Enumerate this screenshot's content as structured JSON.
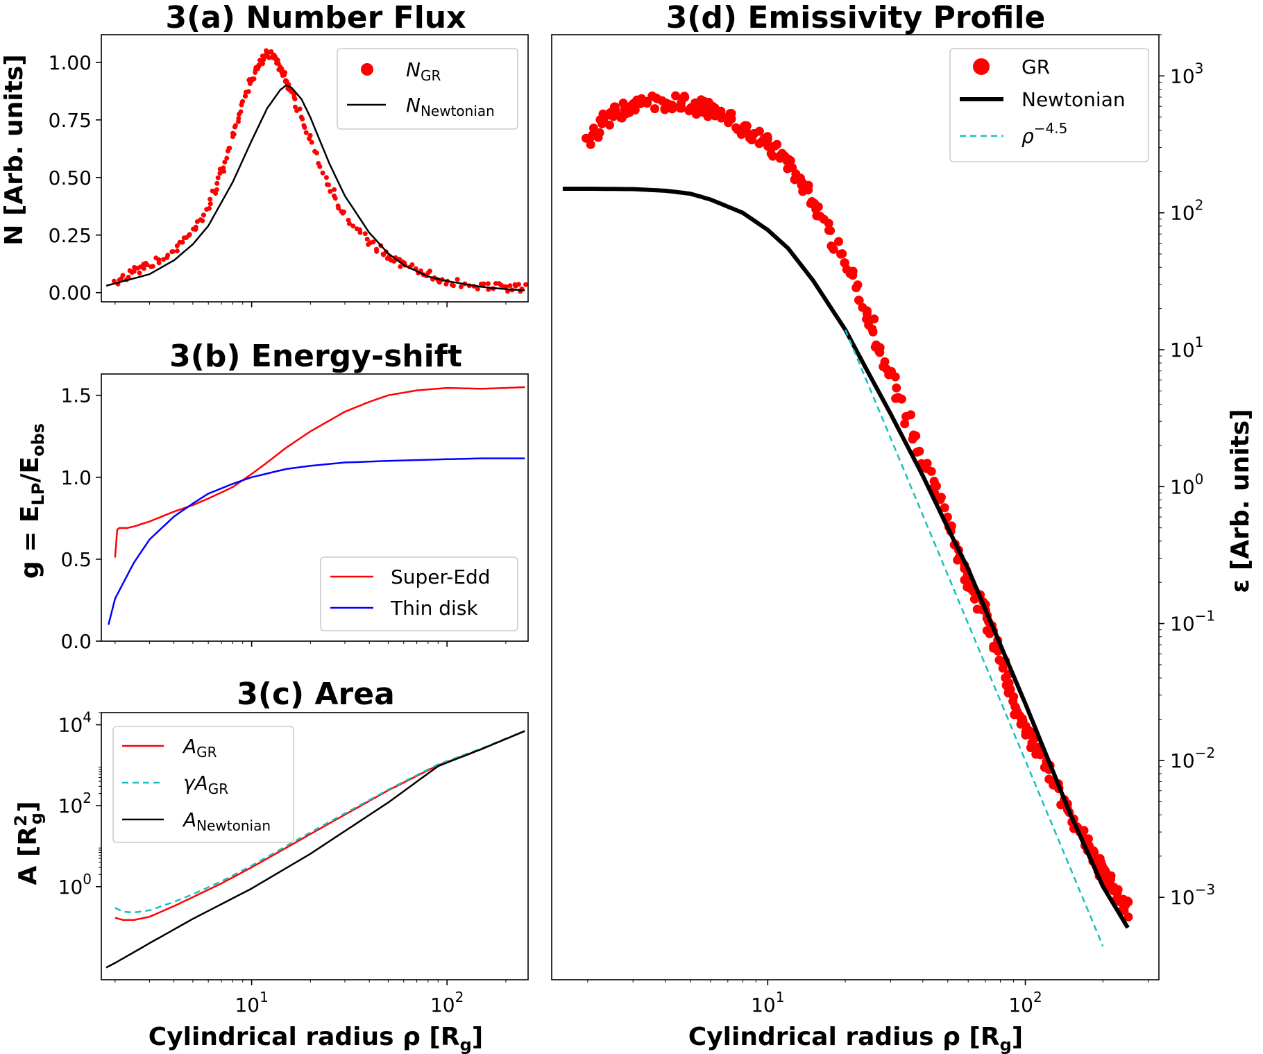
{
  "colors": {
    "gr": "#ff0000",
    "newton": "#000000",
    "thin": "#0000ff",
    "dash": "#17bfbf"
  },
  "chart_data": [
    {
      "id": "a",
      "type": "scatter",
      "title": "3(a) Number Flux",
      "ylabel": "N [Arb. units]",
      "xscale": "log",
      "yscale": "linear",
      "xlim": [
        1.7,
        260
      ],
      "ylim": [
        -0.04,
        1.12
      ],
      "yticks": [
        0,
        0.25,
        0.5,
        0.75,
        1.0
      ],
      "yticklabels": [
        "0.00",
        "0.25",
        "0.50",
        "0.75",
        "1.00"
      ],
      "legend": "top-right",
      "series": [
        {
          "name": "N_GR",
          "label_main": "N",
          "label_sub": "GR",
          "style": "points",
          "color": "red",
          "x": [
            2,
            2.5,
            3,
            4,
            5,
            6,
            7,
            8,
            9,
            10,
            11,
            12,
            13,
            14,
            15,
            17,
            20,
            25,
            30,
            40,
            50,
            60,
            80,
            100,
            150,
            200,
            250
          ],
          "y": [
            0.05,
            0.09,
            0.12,
            0.18,
            0.26,
            0.38,
            0.52,
            0.68,
            0.82,
            0.93,
            1.0,
            1.04,
            1.02,
            0.97,
            0.92,
            0.82,
            0.66,
            0.46,
            0.34,
            0.22,
            0.16,
            0.12,
            0.08,
            0.05,
            0.03,
            0.02,
            0.02
          ]
        },
        {
          "name": "N_Newtonian",
          "label_main": "N",
          "label_sub": "Newtonian",
          "style": "line",
          "color": "black",
          "x": [
            1.8,
            2,
            3,
            4,
            5,
            6,
            8,
            10,
            12,
            14,
            15,
            16,
            18,
            20,
            25,
            30,
            40,
            50,
            60,
            80,
            100,
            150,
            200,
            250
          ],
          "y": [
            0.03,
            0.04,
            0.08,
            0.14,
            0.21,
            0.29,
            0.48,
            0.66,
            0.8,
            0.88,
            0.9,
            0.89,
            0.84,
            0.76,
            0.56,
            0.42,
            0.26,
            0.17,
            0.12,
            0.07,
            0.05,
            0.025,
            0.015,
            0.01
          ]
        }
      ]
    },
    {
      "id": "b",
      "type": "line",
      "title": "3(b) Energy-shift",
      "ylabel": "g = E_LP/E_obs",
      "ylabel_parts": {
        "pre": "g = E",
        "sub1": "LP",
        "mid": "/E",
        "sub2": "obs"
      },
      "xscale": "log",
      "yscale": "linear",
      "xlim": [
        1.7,
        260
      ],
      "ylim": [
        0,
        1.63
      ],
      "yticks": [
        0,
        0.5,
        1.0,
        1.5
      ],
      "yticklabels": [
        "0.0",
        "0.5",
        "1.0",
        "1.5"
      ],
      "legend": "bottom-right",
      "series": [
        {
          "name": "Super-Edd",
          "color": "red",
          "x": [
            2,
            2.05,
            2.1,
            2.3,
            2.5,
            3,
            4,
            5,
            6,
            8,
            10,
            12,
            15,
            20,
            30,
            40,
            50,
            70,
            100,
            150,
            200,
            250
          ],
          "y": [
            0.51,
            0.68,
            0.69,
            0.69,
            0.7,
            0.73,
            0.79,
            0.83,
            0.87,
            0.94,
            1.02,
            1.09,
            1.18,
            1.28,
            1.4,
            1.46,
            1.5,
            1.53,
            1.545,
            1.54,
            1.545,
            1.55
          ]
        },
        {
          "name": "Thin disk",
          "color": "blue",
          "x": [
            1.85,
            2,
            2.5,
            3,
            4,
            5,
            6,
            8,
            10,
            15,
            20,
            30,
            50,
            100,
            150,
            250
          ],
          "y": [
            0.1,
            0.26,
            0.48,
            0.62,
            0.76,
            0.84,
            0.9,
            0.96,
            1.0,
            1.05,
            1.07,
            1.09,
            1.1,
            1.11,
            1.115,
            1.115
          ]
        }
      ]
    },
    {
      "id": "c",
      "type": "line",
      "title": "3(c) Area",
      "ylabel": "A [R_g^2]",
      "xscale": "log",
      "yscale": "log",
      "xlim": [
        1.7,
        260
      ],
      "ylim": [
        0.005,
        20000
      ],
      "yticks": [
        1,
        100,
        10000
      ],
      "ytickexp": [
        "0",
        "2",
        "4"
      ],
      "xticks": [
        10,
        100
      ],
      "xtickexp": [
        "1",
        "2"
      ],
      "xlabel": "Cylindrical radius ρ [R_g]",
      "legend": "top-left",
      "series": [
        {
          "name": "A_GR",
          "label_main": "A",
          "label_sub": "GR",
          "color": "red",
          "style": "solid",
          "x": [
            2,
            2.2,
            2.5,
            3,
            4,
            5,
            7,
            10,
            20,
            50,
            90,
            150,
            250
          ],
          "y": [
            0.17,
            0.15,
            0.15,
            0.18,
            0.33,
            0.55,
            1.2,
            3,
            20,
            240,
            1000,
            2500,
            7000
          ]
        },
        {
          "name": "γA_GR",
          "label_main": "γA",
          "label_sub": "GR",
          "color": "dash",
          "style": "dashed",
          "x": [
            2,
            2.2,
            2.5,
            3,
            4,
            5,
            7,
            10,
            20,
            50,
            90,
            150,
            250
          ],
          "y": [
            0.3,
            0.24,
            0.23,
            0.26,
            0.42,
            0.65,
            1.35,
            3.3,
            22,
            250,
            1050,
            2600,
            7100
          ]
        },
        {
          "name": "A_Newtonian",
          "label_main": "A",
          "label_sub": "Newtonian",
          "color": "black",
          "style": "solid",
          "x": [
            1.8,
            2,
            3,
            5,
            10,
            20,
            50,
            90,
            150,
            250
          ],
          "y": [
            0.01,
            0.013,
            0.04,
            0.16,
            0.9,
            6.5,
            120,
            950,
            2500,
            7000
          ]
        }
      ]
    },
    {
      "id": "d",
      "type": "scatter",
      "title": "3(d) Emissivity Profile",
      "ylabel": "ε [Arb. units]",
      "xlabel": "Cylindrical radius ρ [R_g]",
      "xscale": "log",
      "yscale": "log",
      "xlim": [
        1.45,
        330
      ],
      "ylim": [
        0.00025,
        2000
      ],
      "yticks": [
        0.001,
        0.01,
        0.1,
        1,
        10,
        100,
        1000
      ],
      "ytickexp": [
        "−3",
        "−2",
        "−1",
        "0",
        "1",
        "2",
        "3"
      ],
      "xticks": [
        10,
        100
      ],
      "xtickexp": [
        "1",
        "2"
      ],
      "legend": "top-right",
      "series": [
        {
          "name": "GR",
          "style": "points",
          "color": "red",
          "x": [
            2,
            2.5,
            3,
            4,
            5,
            6,
            8,
            10,
            12,
            15,
            20,
            25,
            30,
            40,
            50,
            60,
            70,
            80,
            90,
            100,
            120,
            150,
            180,
            200,
            230,
            250
          ],
          "y": [
            350,
            520,
            600,
            650,
            620,
            560,
            420,
            320,
            220,
            120,
            45,
            16,
            6.5,
            1.6,
            0.55,
            0.22,
            0.11,
            0.055,
            0.028,
            0.018,
            0.009,
            0.004,
            0.0022,
            0.0015,
            0.0011,
            0.0008
          ]
        },
        {
          "name": "Newtonian",
          "style": "line",
          "color": "black",
          "x": [
            1.6,
            2,
            3,
            4,
            5,
            6,
            8,
            10,
            12,
            15,
            20,
            25,
            30,
            40,
            50,
            60,
            80,
            100,
            150,
            200,
            250
          ],
          "y": [
            150,
            150,
            149,
            145,
            138,
            125,
            100,
            75,
            55,
            32,
            14,
            6.4,
            3.4,
            1.2,
            0.5,
            0.25,
            0.07,
            0.026,
            0.004,
            0.0012,
            0.0006
          ]
        },
        {
          "name": "ρ^−4.5",
          "label_main": "ρ",
          "label_sup": "−4.5",
          "style": "dashed",
          "color": "dash",
          "x": [
            20,
            200
          ],
          "y": [
            14,
            0.00044
          ]
        }
      ]
    }
  ]
}
